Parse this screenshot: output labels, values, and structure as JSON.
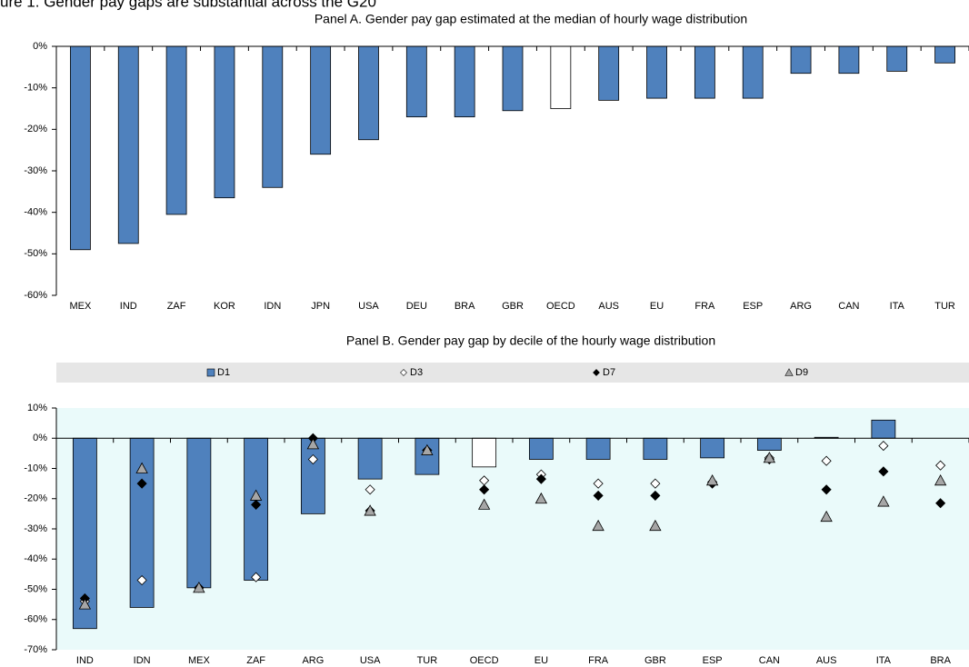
{
  "figure_title": "ure 1. Gender pay gaps are substantial across the G20",
  "chart_data": [
    {
      "type": "bar",
      "title": "Panel A. Gender pay gap estimated at the median of hourly wage distribution",
      "categories": [
        "MEX",
        "IND",
        "ZAF",
        "KOR",
        "IDN",
        "JPN",
        "USA",
        "DEU",
        "BRA",
        "GBR",
        "OECD",
        "AUS",
        "EU",
        "FRA",
        "ESP",
        "ARG",
        "CAN",
        "ITA",
        "TUR"
      ],
      "values": [
        -49,
        -47.5,
        -40.5,
        -36.5,
        -34,
        -26,
        -22.5,
        -17,
        -17,
        -15.5,
        -15,
        -13,
        -12.5,
        -12.5,
        -12.5,
        -6.5,
        -6.5,
        -6,
        -4
      ],
      "colors": [
        "#4f81bd",
        "#4f81bd",
        "#4f81bd",
        "#4f81bd",
        "#4f81bd",
        "#4f81bd",
        "#4f81bd",
        "#4f81bd",
        "#4f81bd",
        "#4f81bd",
        "#ffffff",
        "#4f81bd",
        "#4f81bd",
        "#4f81bd",
        "#4f81bd",
        "#4f81bd",
        "#4f81bd",
        "#4f81bd",
        "#4f81bd"
      ],
      "ylim": [
        -60,
        0
      ],
      "yticks": [
        {
          "value": 0,
          "label": "0%"
        },
        {
          "value": -10,
          "label": "-10%"
        },
        {
          "value": -20,
          "label": "-20%"
        },
        {
          "value": -30,
          "label": "-30%"
        },
        {
          "value": -40,
          "label": "-40%"
        },
        {
          "value": -50,
          "label": "-50%"
        },
        {
          "value": -60,
          "label": "-60%"
        }
      ],
      "grid": false
    },
    {
      "type": "bar-marker",
      "title": "Panel B. Gender pay gap by decile of the hourly wage distribution",
      "categories": [
        "IND",
        "IDN",
        "MEX",
        "ZAF",
        "ARG",
        "USA",
        "TUR",
        "OECD",
        "EU",
        "FRA",
        "GBR",
        "ESP",
        "CAN",
        "AUS",
        "ITA",
        "BRA"
      ],
      "series": [
        {
          "name": "D1",
          "kind": "bar",
          "color": "#4f81bd",
          "highlight": {
            "index": 7,
            "color": "#ffffff"
          },
          "values": [
            -63,
            -56,
            -49.5,
            -47,
            -25,
            -13.5,
            -12,
            -9.5,
            -7,
            -7,
            -7,
            -6.5,
            -4,
            0.3,
            6,
            null
          ]
        },
        {
          "name": "D3",
          "kind": "diamond",
          "color": "#ffffff",
          "values": [
            -54,
            -47,
            -49.5,
            -46,
            -7,
            -17,
            -4,
            -14,
            -12,
            -15,
            -15,
            -14.5,
            -6.5,
            -7.5,
            -2.5,
            -9
          ]
        },
        {
          "name": "D7",
          "kind": "diamond",
          "color": "#000000",
          "values": [
            -53,
            -15,
            -49.5,
            -22,
            0,
            -24,
            -4,
            -17,
            -13.5,
            -19,
            -19,
            -15,
            -7,
            -17,
            -11,
            -21.5
          ]
        },
        {
          "name": "D9",
          "kind": "triangle",
          "color": "#a6a6a6",
          "values": [
            -55,
            -10,
            -49.5,
            -19,
            -2,
            -24,
            -4,
            -22,
            -20,
            -29,
            -29,
            -14,
            -6.5,
            -26,
            -21,
            -14
          ]
        }
      ],
      "ylim": [
        -70,
        10
      ],
      "yticks": [
        {
          "value": 10,
          "label": "10%"
        },
        {
          "value": 0,
          "label": "0%"
        },
        {
          "value": -10,
          "label": "-10%"
        },
        {
          "value": -20,
          "label": "-20%"
        },
        {
          "value": -30,
          "label": "-30%"
        },
        {
          "value": -40,
          "label": "-40%"
        },
        {
          "value": -50,
          "label": "-50%"
        },
        {
          "value": -60,
          "label": "-60%"
        },
        {
          "value": -70,
          "label": "-70%"
        }
      ],
      "legend": "top",
      "background": "#eafafa",
      "grid": false
    }
  ]
}
